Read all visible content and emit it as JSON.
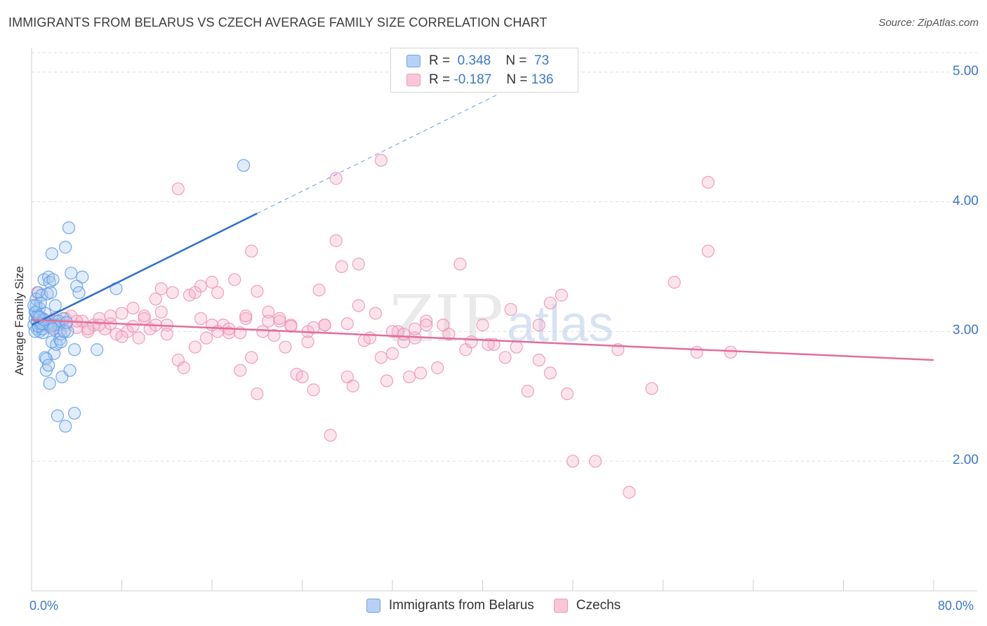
{
  "header": {
    "title": "IMMIGRANTS FROM BELARUS VS CZECH AVERAGE FAMILY SIZE CORRELATION CHART",
    "source": "Source: ZipAtlas.com"
  },
  "legend_top": {
    "rows": [
      {
        "r_label": "R =",
        "r_value": "0.348",
        "n_label": "N =",
        "n_value": "73"
      },
      {
        "r_label": "R =",
        "r_value": "-0.187",
        "n_label": "N =",
        "n_value": "136"
      }
    ]
  },
  "legend_bottom": {
    "items": [
      "Immigrants from Belarus",
      "Czechs"
    ]
  },
  "colors": {
    "blue": "#5b9be6",
    "blue_line": "#2f6fcd",
    "pink": "#f08cb0",
    "pink_line": "#e36d9c",
    "accent_text": "#3b78c7",
    "grid": "#dddddd"
  },
  "watermark": {
    "zip": "ZIP",
    "atlas": "atlas"
  },
  "chart_data": {
    "type": "scatter",
    "title": "IMMIGRANTS FROM BELARUS VS CZECH AVERAGE FAMILY SIZE CORRELATION CHART",
    "xlabel": "",
    "ylabel": "Average Family Size",
    "xlim": [
      0,
      80
    ],
    "ylim": [
      1.0,
      5.15
    ],
    "x_tick_labels": [
      "0.0%",
      "80.0%"
    ],
    "y_ticks": [
      2.0,
      3.0,
      4.0,
      5.0
    ],
    "y_tick_labels": [
      "2.00",
      "3.00",
      "4.00",
      "5.00"
    ],
    "grid": true,
    "legend_position": "top-center",
    "series": [
      {
        "name": "Immigrants from Belarus",
        "color": "#5b9be6",
        "trend": {
          "x": [
            0.0,
            20.0
          ],
          "y": [
            3.05,
            3.91
          ],
          "extended_to": [
            41.4,
            4.83
          ]
        },
        "points": [
          [
            0.2,
            3.05
          ],
          [
            0.3,
            3.1
          ],
          [
            0.3,
            3.15
          ],
          [
            0.4,
            3.2
          ],
          [
            0.4,
            3.25
          ],
          [
            0.5,
            3.02
          ],
          [
            0.5,
            3.08
          ],
          [
            0.6,
            3.3
          ],
          [
            0.6,
            3.12
          ],
          [
            0.7,
            3.0
          ],
          [
            0.7,
            3.18
          ],
          [
            0.8,
            3.05
          ],
          [
            0.9,
            3.28
          ],
          [
            1.0,
            3.1
          ],
          [
            1.0,
            2.99
          ],
          [
            1.1,
            3.4
          ],
          [
            1.1,
            3.06
          ],
          [
            1.2,
            2.8
          ],
          [
            1.2,
            3.14
          ],
          [
            1.3,
            2.7
          ],
          [
            1.4,
            3.29
          ],
          [
            1.5,
            3.42
          ],
          [
            1.5,
            3.05
          ],
          [
            1.6,
            2.6
          ],
          [
            1.6,
            3.38
          ],
          [
            1.7,
            3.3
          ],
          [
            1.8,
            2.92
          ],
          [
            1.8,
            3.6
          ],
          [
            1.9,
            3.4
          ],
          [
            2.0,
            2.83
          ],
          [
            2.1,
            3.2
          ],
          [
            2.2,
            2.9
          ],
          [
            2.2,
            3.08
          ],
          [
            2.3,
            2.35
          ],
          [
            2.4,
            3.05
          ],
          [
            2.5,
            2.94
          ],
          [
            2.6,
            2.98
          ],
          [
            2.7,
            2.65
          ],
          [
            2.8,
            3.1
          ],
          [
            3.0,
            2.27
          ],
          [
            3.0,
            3.65
          ],
          [
            3.2,
            3.0
          ],
          [
            3.3,
            3.8
          ],
          [
            3.4,
            2.7
          ],
          [
            3.5,
            3.45
          ],
          [
            3.8,
            2.86
          ],
          [
            3.8,
            2.37
          ],
          [
            4.0,
            3.35
          ],
          [
            4.2,
            3.3
          ],
          [
            4.5,
            3.42
          ],
          [
            5.8,
            2.86
          ],
          [
            7.5,
            3.33
          ],
          [
            18.8,
            4.28
          ],
          [
            0.3,
            3.0
          ],
          [
            0.5,
            3.12
          ],
          [
            0.8,
            3.22
          ],
          [
            1.0,
            3.02
          ],
          [
            1.4,
            3.06
          ],
          [
            2.0,
            3.05
          ],
          [
            2.4,
            3.08
          ],
          [
            0.6,
            3.04
          ],
          [
            1.3,
            2.79
          ],
          [
            2.6,
            2.92
          ],
          [
            0.4,
            3.15
          ],
          [
            0.9,
            3.06
          ],
          [
            1.7,
            3.04
          ],
          [
            1.9,
            3.02
          ],
          [
            2.9,
            3.0
          ],
          [
            0.2,
            3.2
          ],
          [
            1.1,
            3.09
          ],
          [
            3.1,
            3.07
          ],
          [
            1.5,
            2.74
          ],
          [
            0.7,
            3.11
          ]
        ]
      },
      {
        "name": "Czechs",
        "color": "#f08cb0",
        "trend": {
          "x": [
            0.0,
            80.0
          ],
          "y": [
            3.09,
            2.78
          ]
        },
        "points": [
          [
            0.5,
            3.3
          ],
          [
            1.0,
            3.05
          ],
          [
            1.5,
            3.08
          ],
          [
            2.0,
            3.1
          ],
          [
            2.5,
            3.0
          ],
          [
            3.0,
            3.05
          ],
          [
            3.5,
            3.12
          ],
          [
            4.0,
            3.03
          ],
          [
            4.5,
            3.08
          ],
          [
            5.0,
            3.0
          ],
          [
            5.5,
            3.05
          ],
          [
            6.0,
            3.1
          ],
          [
            6.5,
            3.02
          ],
          [
            7.0,
            3.06
          ],
          [
            7.5,
            2.98
          ],
          [
            8.0,
            3.14
          ],
          [
            8.5,
            3.0
          ],
          [
            9.0,
            3.04
          ],
          [
            9.5,
            2.95
          ],
          [
            10.0,
            3.1
          ],
          [
            10.5,
            3.02
          ],
          [
            11.0,
            3.25
          ],
          [
            11.5,
            3.15
          ],
          [
            12.0,
            3.05
          ],
          [
            12.5,
            3.3
          ],
          [
            13.0,
            2.78
          ],
          [
            13.5,
            2.72
          ],
          [
            14.0,
            3.28
          ],
          [
            14.5,
            2.88
          ],
          [
            15.0,
            3.35
          ],
          [
            15.5,
            2.95
          ],
          [
            16.0,
            3.05
          ],
          [
            16.5,
            3.3
          ],
          [
            17.0,
            3.05
          ],
          [
            17.5,
            2.99
          ],
          [
            18.0,
            3.4
          ],
          [
            18.5,
            2.7
          ],
          [
            19.0,
            3.1
          ],
          [
            19.5,
            2.8
          ],
          [
            20.0,
            2.52
          ],
          [
            20.5,
            3.0
          ],
          [
            21.0,
            3.15
          ],
          [
            21.5,
            2.97
          ],
          [
            22.0,
            3.08
          ],
          [
            22.5,
            2.88
          ],
          [
            23.0,
            3.05
          ],
          [
            23.5,
            2.67
          ],
          [
            24.0,
            2.65
          ],
          [
            24.5,
            2.92
          ],
          [
            25.0,
            2.55
          ],
          [
            25.5,
            3.32
          ],
          [
            26.0,
            3.05
          ],
          [
            26.5,
            2.2
          ],
          [
            27.0,
            3.7
          ],
          [
            27.5,
            3.5
          ],
          [
            28.0,
            2.65
          ],
          [
            28.5,
            2.58
          ],
          [
            29.0,
            3.52
          ],
          [
            29.5,
            2.93
          ],
          [
            30.0,
            2.95
          ],
          [
            30.5,
            3.14
          ],
          [
            31.0,
            2.8
          ],
          [
            31.5,
            2.62
          ],
          [
            32.0,
            2.83
          ],
          [
            32.5,
            3.0
          ],
          [
            33.0,
            2.92
          ],
          [
            33.5,
            2.65
          ],
          [
            34.0,
            2.95
          ],
          [
            34.5,
            2.68
          ],
          [
            35.0,
            3.08
          ],
          [
            36.0,
            2.72
          ],
          [
            37.0,
            2.98
          ],
          [
            38.0,
            3.52
          ],
          [
            38.5,
            2.86
          ],
          [
            39.0,
            2.92
          ],
          [
            40.0,
            3.05
          ],
          [
            41.0,
            2.9
          ],
          [
            42.0,
            2.8
          ],
          [
            42.5,
            3.17
          ],
          [
            43.0,
            2.88
          ],
          [
            44.0,
            2.54
          ],
          [
            45.0,
            2.78
          ],
          [
            46.0,
            2.68
          ],
          [
            47.0,
            3.28
          ],
          [
            47.5,
            2.52
          ],
          [
            48.0,
            2.0
          ],
          [
            50.0,
            2.0
          ],
          [
            52.0,
            2.86
          ],
          [
            53.0,
            1.76
          ],
          [
            55.0,
            2.56
          ],
          [
            57.0,
            3.38
          ],
          [
            59.0,
            2.84
          ],
          [
            60.0,
            4.15
          ],
          [
            60.0,
            3.62
          ],
          [
            62.0,
            2.84
          ],
          [
            13.0,
            4.1
          ],
          [
            31.0,
            4.32
          ],
          [
            27.0,
            4.18
          ],
          [
            19.5,
            3.62
          ],
          [
            11.5,
            3.33
          ],
          [
            16.0,
            3.38
          ],
          [
            21.0,
            3.08
          ],
          [
            23.0,
            3.04
          ],
          [
            9.0,
            3.18
          ],
          [
            7.0,
            3.12
          ],
          [
            6.0,
            3.05
          ],
          [
            4.0,
            3.08
          ],
          [
            3.0,
            3.1
          ],
          [
            2.2,
            3.05
          ],
          [
            1.7,
            3.03
          ],
          [
            14.5,
            3.3
          ],
          [
            17.5,
            3.02
          ],
          [
            24.5,
            3.0
          ],
          [
            29.0,
            3.2
          ],
          [
            33.0,
            2.98
          ],
          [
            36.5,
            3.05
          ],
          [
            40.5,
            2.9
          ],
          [
            46.0,
            3.22
          ],
          [
            12.0,
            2.98
          ],
          [
            8.0,
            2.96
          ],
          [
            10.0,
            3.12
          ],
          [
            18.5,
            2.99
          ],
          [
            26.0,
            3.05
          ],
          [
            32.0,
            3.0
          ],
          [
            20.0,
            3.31
          ],
          [
            35.0,
            3.05
          ],
          [
            45.0,
            3.05
          ],
          [
            22.0,
            3.1
          ],
          [
            15.0,
            3.1
          ],
          [
            5.0,
            3.02
          ],
          [
            11.0,
            3.05
          ],
          [
            16.5,
            3.0
          ],
          [
            19.0,
            3.12
          ],
          [
            25.0,
            3.03
          ],
          [
            28.0,
            3.06
          ],
          [
            34.0,
            3.02
          ]
        ]
      }
    ]
  }
}
